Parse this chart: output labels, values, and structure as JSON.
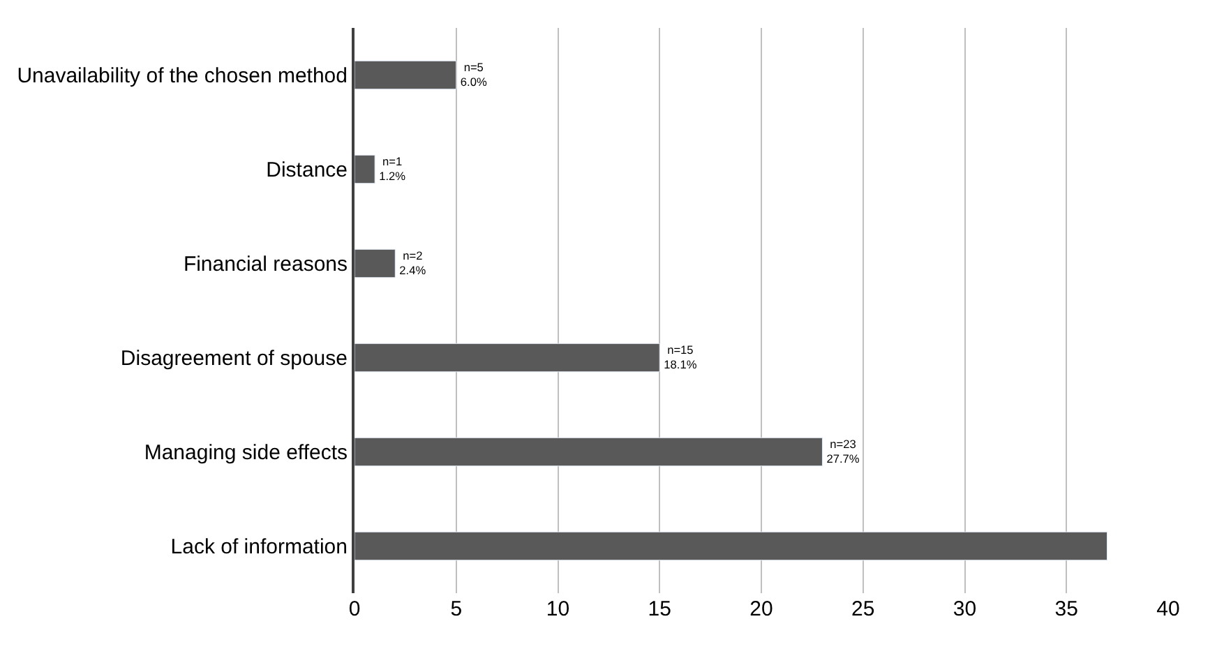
{
  "chart_data": {
    "type": "bar",
    "orientation": "horizontal",
    "categories": [
      "Unavailability of the chosen method",
      "Distance",
      "Financial reasons",
      "Disagreement of spouse",
      "Managing side effects",
      "Lack of information"
    ],
    "values": [
      5,
      1,
      2,
      15,
      23,
      37
    ],
    "value_labels": [
      "n=5\n6.0%",
      "n=1\n1.2%",
      "n=2\n2.4%",
      "n=15\n18.1%",
      "n=23\n27.7%",
      null
    ],
    "color": "#595959",
    "xlim": [
      0,
      40
    ],
    "xticks": [
      0,
      5,
      10,
      15,
      20,
      25,
      30,
      35,
      40
    ],
    "grid": "x",
    "legend": false
  }
}
